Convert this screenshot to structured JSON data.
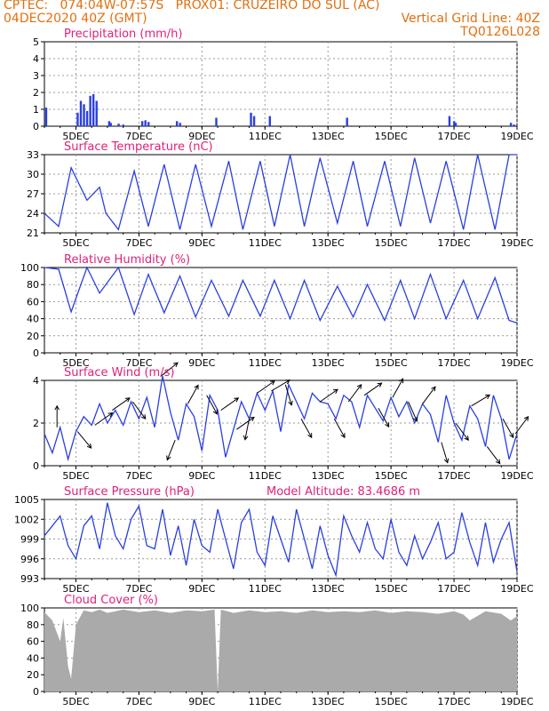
{
  "header": {
    "line1_left": "CPTEC:   074:04W-07:57S   PROX01: CRUZEIRO DO SUL (AC)",
    "line2_left": "04DEC2020 40Z (GMT)",
    "line2_right": "Vertical Grid Line: 40Z",
    "line3_right": "TQ0126L028",
    "colors": {
      "header": "#e07010",
      "title": "#e0207a",
      "series": "#2a3fe0",
      "cloud": "#aaaaaa"
    }
  },
  "x_axis": {
    "labels": [
      "5DEC",
      "7DEC",
      "9DEC",
      "11DEC",
      "13DEC",
      "15DEC",
      "17DEC",
      "19DEC"
    ],
    "xlim": [
      0,
      15
    ],
    "label_positions": [
      1,
      3,
      5,
      7,
      9,
      11,
      13,
      15
    ]
  },
  "chart_data": [
    {
      "type": "bar",
      "title": "Precipitation (mm/h)",
      "ylim": [
        0,
        5
      ],
      "yticks": [
        "0",
        "1",
        "2",
        "3",
        "4",
        "5"
      ],
      "x": [
        0.05,
        1.05,
        1.15,
        1.25,
        1.35,
        1.45,
        1.55,
        1.65,
        2.05,
        2.1,
        2.35,
        2.5,
        3.1,
        3.2,
        3.3,
        4.2,
        4.3,
        5.45,
        6.55,
        6.65,
        7.15,
        9.6,
        12.85,
        13.0,
        13.05,
        14.8,
        14.9
      ],
      "values": [
        1.1,
        0.8,
        1.5,
        1.3,
        0.9,
        1.8,
        1.9,
        1.5,
        0.3,
        0.2,
        0.15,
        0.1,
        0.3,
        0.35,
        0.25,
        0.3,
        0.2,
        0.5,
        0.8,
        0.6,
        0.6,
        0.5,
        0.6,
        0.3,
        0.2,
        0.2,
        0.1
      ],
      "grid": true
    },
    {
      "type": "line",
      "title": "Surface Temperature (nC)",
      "ylim": [
        21,
        33
      ],
      "yticks": [
        "21",
        "24",
        "27",
        "30",
        "33"
      ],
      "x": [
        0,
        0.45,
        0.85,
        1.35,
        1.75,
        1.95,
        2.35,
        2.85,
        3.3,
        3.8,
        4.3,
        4.8,
        5.3,
        5.85,
        6.3,
        6.85,
        7.3,
        7.8,
        8.25,
        8.75,
        9.3,
        9.8,
        10.25,
        10.8,
        11.3,
        11.75,
        12.25,
        12.75,
        13.3,
        13.75,
        14.3,
        14.75,
        15
      ],
      "values": [
        24,
        22,
        31,
        26,
        28,
        24,
        21.5,
        30.5,
        22,
        31.5,
        21.5,
        31.5,
        22,
        32,
        21.5,
        32,
        22,
        33,
        22,
        32.5,
        22.5,
        32,
        22,
        32,
        22,
        32.5,
        22.5,
        32,
        21.5,
        33,
        21.5,
        33,
        33
      ],
      "grid": true
    },
    {
      "type": "line",
      "title": "Relative Humidity (%)",
      "ylim": [
        0,
        100
      ],
      "yticks": [
        "0",
        "20",
        "40",
        "60",
        "80",
        "100"
      ],
      "x": [
        0,
        0.45,
        0.85,
        1.35,
        1.75,
        2.35,
        2.85,
        3.3,
        3.8,
        4.3,
        4.8,
        5.3,
        5.85,
        6.3,
        6.85,
        7.3,
        7.8,
        8.25,
        8.75,
        9.3,
        9.8,
        10.25,
        10.8,
        11.3,
        11.75,
        12.25,
        12.75,
        13.3,
        13.75,
        14.3,
        14.75,
        15
      ],
      "values": [
        100,
        98,
        48,
        100,
        70,
        100,
        45,
        92,
        47,
        90,
        42,
        85,
        43,
        85,
        43,
        85,
        40,
        85,
        38,
        78,
        42,
        80,
        38,
        85,
        40,
        92,
        40,
        85,
        40,
        88,
        38,
        35
      ],
      "grid": true
    },
    {
      "type": "line",
      "title": "Surface Wind (m/s)",
      "ylim": [
        0,
        4
      ],
      "yticks": [
        "0",
        "2",
        "4"
      ],
      "x": [
        0,
        0.25,
        0.5,
        0.75,
        1.0,
        1.25,
        1.5,
        1.75,
        2.0,
        2.25,
        2.5,
        2.75,
        3.0,
        3.25,
        3.5,
        3.75,
        4.0,
        4.25,
        4.5,
        4.75,
        5.0,
        5.25,
        5.5,
        5.75,
        6.0,
        6.25,
        6.5,
        6.75,
        7.0,
        7.25,
        7.5,
        7.75,
        8.0,
        8.25,
        8.5,
        8.75,
        9.0,
        9.25,
        9.5,
        9.75,
        10.0,
        10.25,
        10.5,
        10.75,
        11.0,
        11.25,
        11.5,
        11.75,
        12.0,
        12.25,
        12.5,
        12.75,
        13.0,
        13.25,
        13.5,
        13.75,
        14.0,
        14.25,
        14.5,
        14.75,
        15.0
      ],
      "values": [
        1.5,
        0.6,
        1.8,
        0.3,
        1.6,
        2.3,
        1.9,
        2.9,
        2.0,
        2.6,
        1.9,
        3.0,
        2.2,
        3.2,
        1.8,
        4.2,
        2.5,
        1.2,
        2.9,
        2.3,
        0.7,
        3.3,
        2.6,
        0.4,
        1.7,
        3.0,
        2.2,
        3.4,
        2.6,
        3.5,
        1.6,
        3.8,
        3.0,
        2.2,
        3.4,
        3.0,
        2.9,
        2.2,
        3.3,
        3.0,
        1.8,
        3.3,
        2.7,
        2.1,
        3.2,
        2.3,
        3.0,
        2.0,
        2.9,
        2.4,
        1.1,
        3.3,
        2.0,
        1.2,
        2.8,
        2.2,
        0.9,
        3.3,
        2.2,
        0.3,
        1.5
      ],
      "arrows": [
        {
          "x": 0.4,
          "dx": 0,
          "dy": 1
        },
        {
          "x": 1.05,
          "dx": 0.5,
          "dy": -0.6
        },
        {
          "x": 1.6,
          "dx": 1,
          "dy": 0.7
        },
        {
          "x": 2.15,
          "dx": 1,
          "dy": 0.7
        },
        {
          "x": 2.8,
          "dx": 0.6,
          "dy": -0.8
        },
        {
          "x": 3.7,
          "dx": 1,
          "dy": 0.8
        },
        {
          "x": 4.15,
          "dx": -0.4,
          "dy": -1
        },
        {
          "x": 4.55,
          "dx": 0.5,
          "dy": 0.9
        },
        {
          "x": 5.15,
          "dx": 0.5,
          "dy": -0.9
        },
        {
          "x": 5.6,
          "dx": 1,
          "dy": 0.7
        },
        {
          "x": 6.1,
          "dx": 1,
          "dy": 0.7
        },
        {
          "x": 6.5,
          "dx": -0.2,
          "dy": -1
        },
        {
          "x": 6.75,
          "dx": 1,
          "dy": 0.7
        },
        {
          "x": 7.2,
          "dx": 1,
          "dy": 0.6
        },
        {
          "x": 7.65,
          "dx": 0.3,
          "dy": -1
        },
        {
          "x": 8.15,
          "dx": 0.5,
          "dy": -0.9
        },
        {
          "x": 8.75,
          "dx": 1,
          "dy": 0.7
        },
        {
          "x": 9.2,
          "dx": 0.5,
          "dy": -0.9
        },
        {
          "x": 9.65,
          "dx": 0.6,
          "dy": 0.8
        },
        {
          "x": 10.15,
          "dx": 1,
          "dy": 0.7
        },
        {
          "x": 10.6,
          "dx": 0.5,
          "dy": -0.9
        },
        {
          "x": 11.05,
          "dx": 0.5,
          "dy": 0.9
        },
        {
          "x": 11.55,
          "dx": 0.4,
          "dy": -0.9
        },
        {
          "x": 12.0,
          "dx": 0.6,
          "dy": 0.8
        },
        {
          "x": 12.6,
          "dx": 0.3,
          "dy": -1
        },
        {
          "x": 13.05,
          "dx": 0.6,
          "dy": -0.8
        },
        {
          "x": 13.55,
          "dx": 1,
          "dy": 0.6
        },
        {
          "x": 14.05,
          "dx": 0.6,
          "dy": -0.8
        },
        {
          "x": 14.55,
          "dx": 0.5,
          "dy": -0.9
        },
        {
          "x": 14.95,
          "dx": 0.6,
          "dy": 0.8
        }
      ],
      "grid": true
    },
    {
      "type": "line",
      "title": "Surface Pressure (hPa)",
      "annotation": "Model Altitude: 83.4686 m",
      "ylim": [
        993,
        1005
      ],
      "yticks": [
        "993",
        "996",
        "999",
        "1002",
        "1005"
      ],
      "x": [
        0,
        0.25,
        0.5,
        0.75,
        1.0,
        1.25,
        1.5,
        1.75,
        2.0,
        2.25,
        2.5,
        2.75,
        3.0,
        3.25,
        3.5,
        3.75,
        4.0,
        4.25,
        4.5,
        4.75,
        5.0,
        5.25,
        5.5,
        5.75,
        6.0,
        6.25,
        6.5,
        6.75,
        7.0,
        7.25,
        7.5,
        7.75,
        8.0,
        8.25,
        8.5,
        8.75,
        9.0,
        9.25,
        9.5,
        9.75,
        10.0,
        10.25,
        10.5,
        10.75,
        11.0,
        11.25,
        11.5,
        11.75,
        12.0,
        12.25,
        12.5,
        12.75,
        13.0,
        13.25,
        13.5,
        13.75,
        14.0,
        14.25,
        14.5,
        14.75,
        15.0
      ],
      "values": [
        999.5,
        1001,
        1002.5,
        998,
        996,
        1001,
        1002.5,
        997.5,
        1004.5,
        999.5,
        997.5,
        1002,
        1004,
        998,
        997.5,
        1003.5,
        996.5,
        1001,
        995,
        1002,
        998,
        997,
        1003.5,
        999,
        994.5,
        1001.5,
        1003.5,
        997,
        995,
        1002.5,
        999,
        995.5,
        1003.5,
        999,
        994.5,
        1001,
        996.5,
        993.5,
        1002.5,
        999.5,
        997,
        1001.5,
        997.5,
        996,
        1002,
        997,
        995,
        999.5,
        996,
        998.5,
        1001.5,
        996,
        997,
        1003,
        998.5,
        995,
        1001.5,
        995.5,
        999,
        1001.5,
        994
      ],
      "grid": true
    },
    {
      "type": "area",
      "title": "Cloud Cover (%)",
      "ylim": [
        0,
        100
      ],
      "yticks": [
        "0",
        "20",
        "40",
        "60",
        "80",
        "100"
      ],
      "x": [
        0,
        0.25,
        0.5,
        0.6,
        0.75,
        0.85,
        1.0,
        1.25,
        1.5,
        1.75,
        2.0,
        2.5,
        3.0,
        3.5,
        4.0,
        4.5,
        5.0,
        5.4,
        5.5,
        5.6,
        6.0,
        6.5,
        7.0,
        7.5,
        8.0,
        8.5,
        9.0,
        9.5,
        10.0,
        10.5,
        11.0,
        11.5,
        12.0,
        12.5,
        13.0,
        13.3,
        13.5,
        14.0,
        14.5,
        14.8,
        15.0
      ],
      "values": [
        95,
        85,
        60,
        88,
        30,
        15,
        80,
        97,
        95,
        98,
        94,
        98,
        95,
        97,
        94,
        97,
        96,
        98,
        0,
        98,
        94,
        97,
        95,
        96,
        94,
        97,
        95,
        96,
        95,
        97,
        94,
        96,
        95,
        93,
        96,
        92,
        85,
        96,
        93,
        85,
        90
      ],
      "grid": true
    }
  ]
}
